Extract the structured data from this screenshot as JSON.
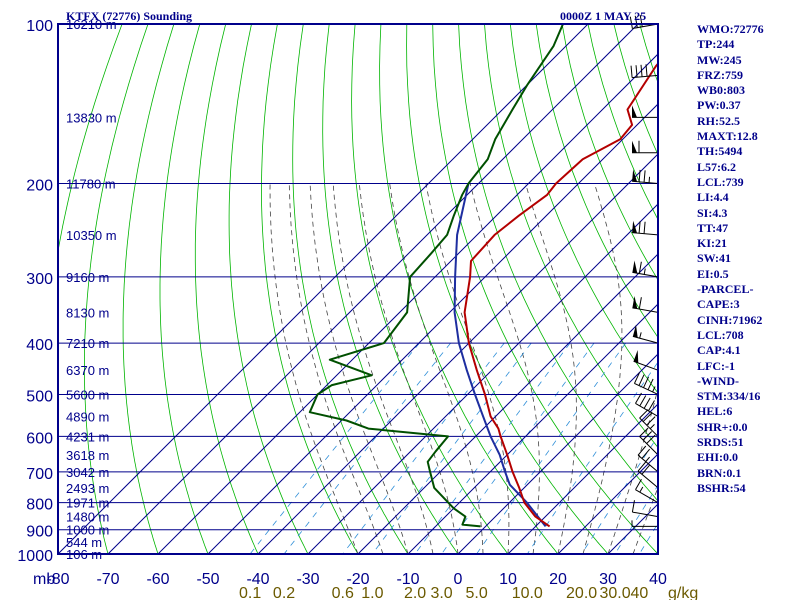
{
  "header": {
    "station": "KTFX (72776) Sounding",
    "time": "0000Z  1 MAY 25"
  },
  "indices": [
    "WMO:72776",
    "TP:244",
    "MW:245",
    "FRZ:759",
    "WB0:803",
    "PW:0.37",
    "RH:52.5",
    "MAXT:12.8",
    "TH:5494",
    "L57:6.2",
    "LCL:739",
    "LI:4.4",
    "SI:4.3",
    "TT:47",
    "KI:21",
    "SW:41",
    "EI:0.5",
    "-PARCEL-",
    "CAPE:3",
    "CINH:71962",
    "LCL:708",
    "CAP:4.1",
    "LFC:-1",
    "-WIND-",
    "STM:334/16",
    "HEL:6",
    "SHR+:0.0",
    "SRDS:51",
    "EHI:0.0",
    "BRN:0.1",
    "BSHR:54"
  ],
  "colors": {
    "frame": "#00008b",
    "isobar": "#00008b",
    "isotherm": "#00008b",
    "dry_adiabat": "#00b400",
    "moist_adiabat": "#444444",
    "mixing_ratio": "#2f8fd8",
    "temperature": "#b40000",
    "dewpoint": "#005000",
    "parcel": "#1e2ea0",
    "mixing_label": "#6b5a00",
    "panel_text": "#00008b"
  },
  "chart_data": {
    "type": "skew-t",
    "unit_label": "mb",
    "pressure_ticks": [
      100,
      200,
      300,
      400,
      500,
      600,
      700,
      800,
      900,
      1000
    ],
    "temperature_ticks": [
      -80,
      -70,
      -60,
      -50,
      -40,
      -30,
      -20,
      -10,
      0,
      10,
      20,
      30,
      40
    ],
    "mixing_ratio_ticks": [
      0.1,
      0.2,
      0.6,
      1.0,
      2.0,
      3.0,
      5.0,
      10.0,
      20.0,
      30.0,
      40.0
    ],
    "mixing_ratio_labels": [
      "0.1",
      "0.2",
      "0.6",
      "1.0",
      "2.0",
      "3.0",
      "5.0",
      "10.0",
      "20.0",
      "30.0",
      "40"
    ],
    "mixing_ratio_unit": "g/kg",
    "heights": [
      {
        "p": 100,
        "label": "16210 m"
      },
      {
        "p": 150,
        "label": "13830 m"
      },
      {
        "p": 200,
        "label": "11780 m"
      },
      {
        "p": 250,
        "label": "10350 m"
      },
      {
        "p": 300,
        "label": "9160 m"
      },
      {
        "p": 350,
        "label": "8130 m"
      },
      {
        "p": 400,
        "label": "7210 m"
      },
      {
        "p": 450,
        "label": "6370 m"
      },
      {
        "p": 500,
        "label": "5600 m"
      },
      {
        "p": 550,
        "label": "4890 m"
      },
      {
        "p": 600,
        "label": "4231 m"
      },
      {
        "p": 650,
        "label": "3618 m"
      },
      {
        "p": 700,
        "label": "3042 m"
      },
      {
        "p": 750,
        "label": "2493 m"
      },
      {
        "p": 800,
        "label": "1971 m"
      },
      {
        "p": 850,
        "label": "1480 m"
      },
      {
        "p": 900,
        "label": "1000 m"
      },
      {
        "p": 950,
        "label": "544 m"
      },
      {
        "p": 1000,
        "label": "106 m"
      }
    ],
    "temperature_profile": [
      [
        887,
        12.8
      ],
      [
        850,
        8.0
      ],
      [
        800,
        3.0
      ],
      [
        750,
        -1.0
      ],
      [
        700,
        -5.5
      ],
      [
        650,
        -10.0
      ],
      [
        600,
        -15.0
      ],
      [
        580,
        -17.0
      ],
      [
        550,
        -21.0
      ],
      [
        500,
        -26.5
      ],
      [
        450,
        -33.0
      ],
      [
        400,
        -40.0
      ],
      [
        350,
        -47.0
      ],
      [
        300,
        -53.0
      ],
      [
        280,
        -56.0
      ],
      [
        250,
        -56.5
      ],
      [
        230,
        -55.5
      ],
      [
        210,
        -54.0
      ],
      [
        200,
        -54.5
      ],
      [
        180,
        -54.0
      ],
      [
        165,
        -50.5
      ],
      [
        155,
        -51.0
      ],
      [
        145,
        -55.0
      ],
      [
        120,
        -58.0
      ],
      [
        100,
        -59.0
      ]
    ],
    "dewpoint_profile": [
      [
        887,
        -1.0
      ],
      [
        880,
        -5.0
      ],
      [
        850,
        -6.0
      ],
      [
        820,
        -10.0
      ],
      [
        750,
        -18.0
      ],
      [
        700,
        -22.0
      ],
      [
        670,
        -24.5
      ],
      [
        640,
        -25.0
      ],
      [
        600,
        -25.5
      ],
      [
        580,
        -43.0
      ],
      [
        560,
        -49.0
      ],
      [
        540,
        -58.0
      ],
      [
        500,
        -60.0
      ],
      [
        480,
        -59.0
      ],
      [
        460,
        -53.0
      ],
      [
        430,
        -64.5
      ],
      [
        400,
        -57.0
      ],
      [
        350,
        -58.5
      ],
      [
        300,
        -65.0
      ],
      [
        270,
        -65.5
      ],
      [
        250,
        -66.0
      ],
      [
        230,
        -68.5
      ],
      [
        210,
        -71.0
      ],
      [
        200,
        -72.0
      ],
      [
        180,
        -73.0
      ],
      [
        165,
        -75.5
      ],
      [
        145,
        -78.0
      ],
      [
        130,
        -80.0
      ],
      [
        110,
        -82.5
      ],
      [
        100,
        -85.0
      ]
    ],
    "parcel_profile": [
      [
        887,
        12.0
      ],
      [
        850,
        8.5
      ],
      [
        800,
        3.5
      ],
      [
        740,
        -3.5
      ],
      [
        700,
        -7.0
      ],
      [
        650,
        -11.5
      ],
      [
        600,
        -17.0
      ],
      [
        550,
        -22.5
      ],
      [
        500,
        -28.5
      ],
      [
        450,
        -35.0
      ],
      [
        400,
        -42.0
      ],
      [
        350,
        -49.0
      ],
      [
        300,
        -56.0
      ],
      [
        250,
        -64.0
      ],
      [
        200,
        -72.0
      ]
    ],
    "wind_barbs": [
      [
        887,
        270,
        5
      ],
      [
        850,
        280,
        10
      ],
      [
        800,
        300,
        15
      ],
      [
        750,
        310,
        20
      ],
      [
        700,
        310,
        25
      ],
      [
        650,
        315,
        30
      ],
      [
        600,
        315,
        35
      ],
      [
        550,
        300,
        40
      ],
      [
        500,
        295,
        45
      ],
      [
        450,
        290,
        50
      ],
      [
        400,
        285,
        55
      ],
      [
        350,
        280,
        60
      ],
      [
        300,
        280,
        65
      ],
      [
        250,
        275,
        70
      ],
      [
        200,
        275,
        75
      ],
      [
        175,
        270,
        60
      ],
      [
        150,
        270,
        50
      ],
      [
        125,
        265,
        40
      ],
      [
        100,
        260,
        30
      ]
    ]
  }
}
